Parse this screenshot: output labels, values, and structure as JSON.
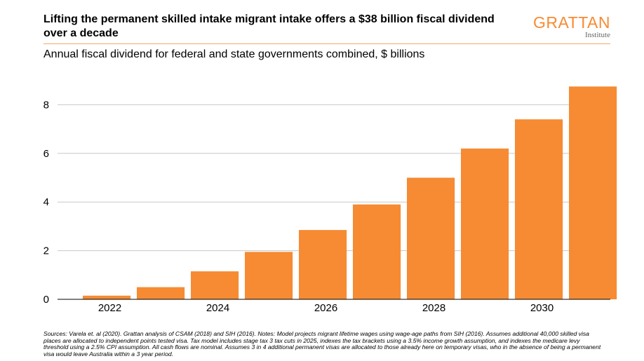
{
  "header": {
    "title": "Lifting the permanent skilled intake migrant intake offers a $38 billion fiscal dividend over a decade",
    "subtitle": "Annual fiscal dividend for federal and state governments combined, $ billions"
  },
  "logo": {
    "main": "GRATTAN",
    "sub": "Institute"
  },
  "colors": {
    "bar": "#f68b33",
    "grid": "#c8c8c8",
    "accent": "#f68b33"
  },
  "chart_data": {
    "type": "bar",
    "categories": [
      "2022",
      "2023",
      "2024",
      "2025",
      "2026",
      "2027",
      "2028",
      "2029",
      "2030",
      "2031"
    ],
    "values": [
      0.15,
      0.5,
      1.15,
      1.95,
      2.85,
      3.9,
      5.0,
      6.2,
      7.4,
      8.75
    ],
    "x_tick_labels": [
      "2022",
      "2024",
      "2026",
      "2028",
      "2030"
    ],
    "y_ticks": [
      0,
      2,
      4,
      6,
      8
    ],
    "ylim": [
      0,
      9
    ],
    "grid": true,
    "legend": "none"
  },
  "notes": "Sources: Varela et. al (2020). Grattan analysis of CSAM (2018) and SIH (2016). Notes: Model projects migrant lifetime wages using wage-age paths from SIH (2016). Assumes additional 40,000 skilled visa places are allocated to independent points tested visa. Tax model includes stage tax 3 tax cuts in 2025, indexes the tax brackets using a 3.5% income growth assumption, and indexes the medicare levy threshold using a 2.5% CPI assumption. All cash flows are nominal. Assumes 3 in 4 additional permanent visas are allocated to those already here on temporary visas, who in the absence of being a permanent visa would leave Australia within a 3 year period."
}
